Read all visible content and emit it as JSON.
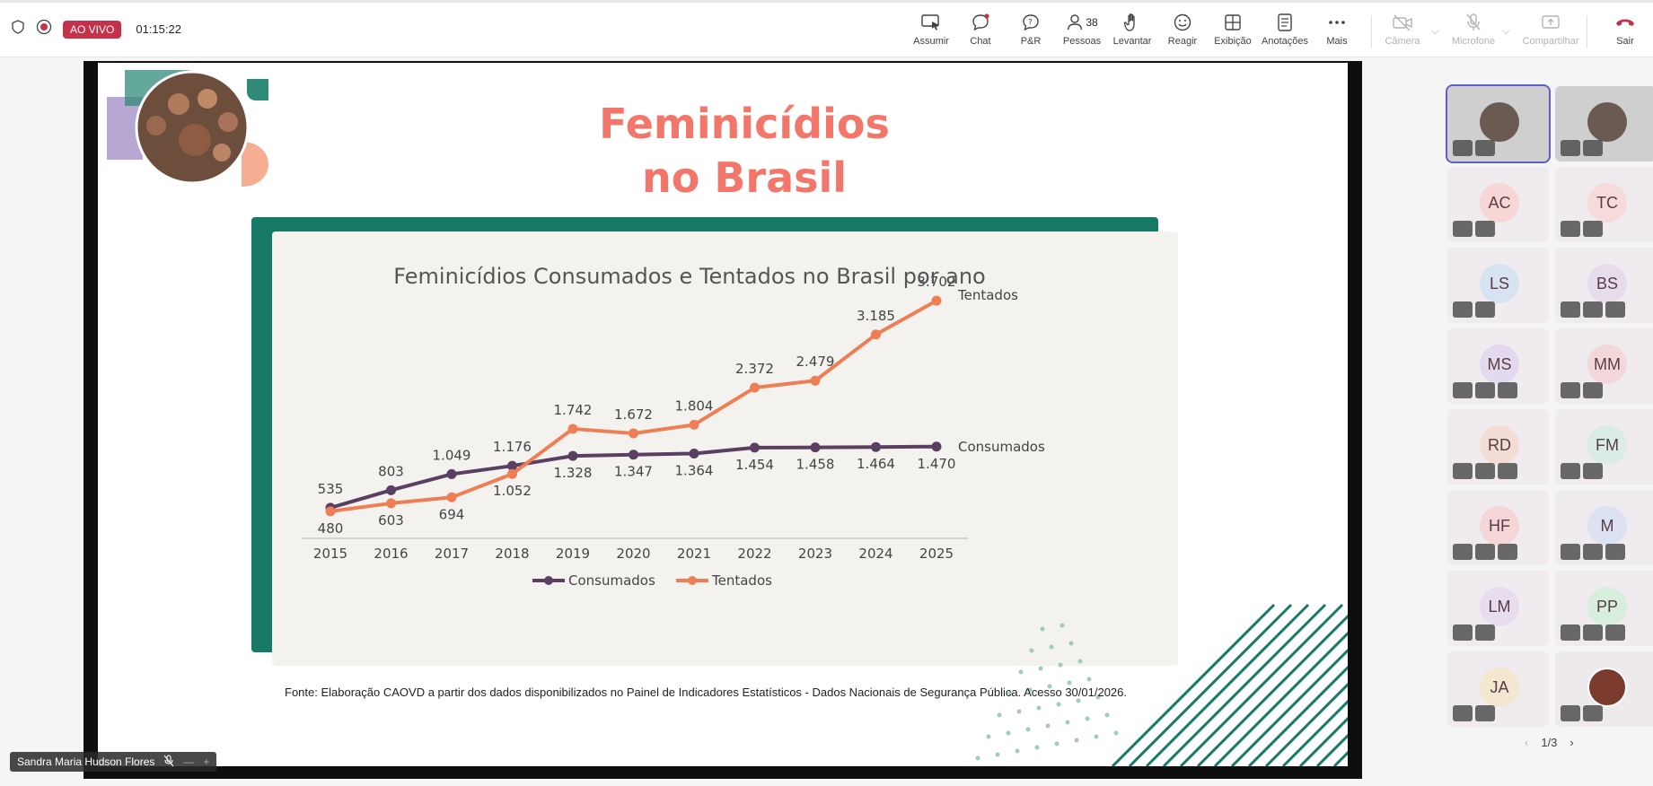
{
  "topbar": {
    "live_label": "AO VIVO",
    "timer": "01:15:22",
    "buttons": {
      "assumir": "Assumir",
      "chat": "Chat",
      "pr": "P&R",
      "pessoas": "Pessoas",
      "pessoas_count": "38",
      "levantar": "Levantar",
      "reagir": "Reagir",
      "exibicao": "Exibição",
      "anotacoes": "Anotações",
      "mais": "Mais",
      "camera": "Câmera",
      "microfone": "Microfone",
      "compartilhar": "Compartilhar",
      "sair": "Sair"
    },
    "colors": {
      "live": "#c4314b",
      "leave": "#c4314b",
      "accent": "#5b5fc7"
    }
  },
  "slide": {
    "title_line1": "Feminicídios",
    "title_line2": "no Brasil",
    "source": "Fonte: Elaboração CAOVD a partir dos dados disponibilizados no Painel de Indicadores Estatísticos - Dados Nacionais de Segurança Pública. Acesso 30/01/2026."
  },
  "chart_data": {
    "type": "line",
    "title": "Feminicídios Consumados e Tentados no Brasil por ano",
    "categories": [
      "2015",
      "2016",
      "2017",
      "2018",
      "2019",
      "2020",
      "2021",
      "2022",
      "2023",
      "2024",
      "2025"
    ],
    "series": [
      {
        "name": "Consumados",
        "color": "#5a3f63",
        "values": [
          535,
          803,
          1049,
          1176,
          1328,
          1347,
          1364,
          1454,
          1458,
          1464,
          1470
        ],
        "labels": [
          "535",
          "803",
          "1.049",
          "1.176",
          "1.328",
          "1.347",
          "1.364",
          "1.454",
          "1.458",
          "1.464",
          "1.470"
        ]
      },
      {
        "name": "Tentados",
        "color": "#ee7f55",
        "values": [
          480,
          603,
          694,
          1052,
          1742,
          1672,
          1804,
          2372,
          2479,
          3185,
          3702
        ],
        "labels": [
          "480",
          "603",
          "694",
          "1.052",
          "1.742",
          "1.672",
          "1.804",
          "2.372",
          "2.479",
          "3.185",
          "3.702"
        ]
      }
    ],
    "ylim": [
      300,
      3800
    ],
    "grid": false,
    "legend": "bottom"
  },
  "presenter": {
    "name": "Sandra Maria Hudson Flores"
  },
  "participants": {
    "tiles": [
      {
        "initials": "",
        "kind": "video"
      },
      {
        "initials": "",
        "kind": "video"
      },
      {
        "initials": "AC",
        "color": "#f7d6d6"
      },
      {
        "initials": "TC",
        "color": "#f7dada"
      },
      {
        "initials": "LS",
        "color": "#d8e3f2"
      },
      {
        "initials": "BS",
        "color": "#e6dceb"
      },
      {
        "initials": "MS",
        "color": "#e3d9ee"
      },
      {
        "initials": "MM",
        "color": "#f2d8da"
      },
      {
        "initials": "RD",
        "color": "#f3dcd3"
      },
      {
        "initials": "FM",
        "color": "#d9ece7"
      },
      {
        "initials": "HF",
        "color": "#f4d6d6"
      },
      {
        "initials": "M",
        "color": "#dde2f3"
      },
      {
        "initials": "LM",
        "color": "#e7ddef"
      },
      {
        "initials": "PP",
        "color": "#d8eedd"
      },
      {
        "initials": "JA",
        "color": "#f3e7cf"
      },
      {
        "initials": "",
        "kind": "photo"
      }
    ],
    "page": "1/3"
  }
}
